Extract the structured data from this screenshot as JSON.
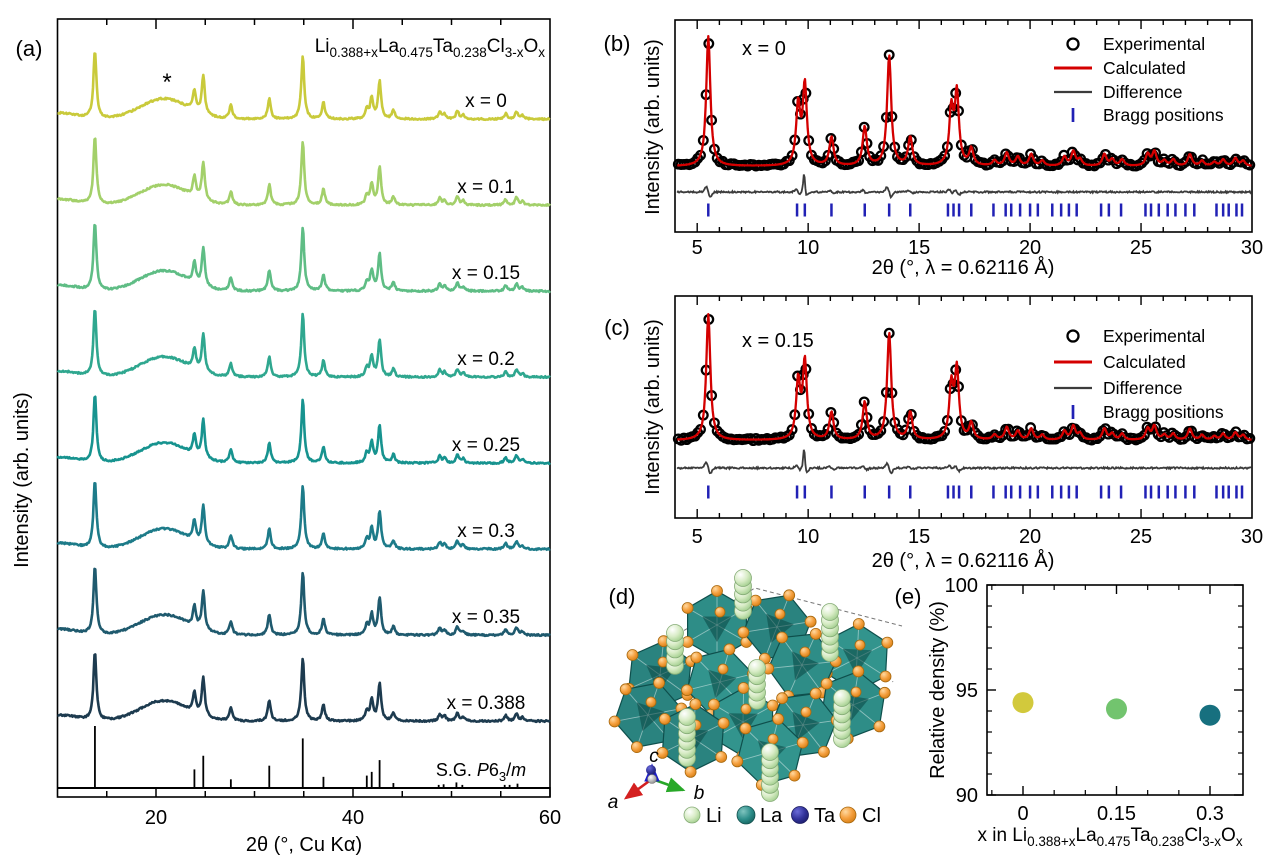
{
  "page": {
    "background": "#ffffff"
  },
  "panels": {
    "a": {
      "label": "(a)",
      "ylabel": "Intensity (arb. units)",
      "xlabel": "2θ (°, Cu Kα)",
      "asterisk": "*",
      "title_formula": [
        {
          "t": "Li"
        },
        {
          "t": "0.388+x",
          "sub": true
        },
        {
          "t": "La"
        },
        {
          "t": "0.475",
          "sub": true
        },
        {
          "t": "Ta"
        },
        {
          "t": "0.238",
          "sub": true
        },
        {
          "t": "Cl"
        },
        {
          "t": "3-x",
          "sub": true
        },
        {
          "t": "O"
        },
        {
          "t": "x",
          "sub": true
        }
      ],
      "space_group": [
        {
          "t": "S.G. "
        },
        {
          "t": "P",
          "i": true
        },
        {
          "t": "6"
        },
        {
          "t": "3",
          "sub": true
        },
        {
          "t": "/"
        },
        {
          "t": "m",
          "i": true
        }
      ]
    },
    "b": {
      "label": "(b)",
      "annotation": "x = 0",
      "ylabel": "Intensity (arb. units)",
      "xlabel": "2θ (°, λ = 0.62116 Å)"
    },
    "c": {
      "label": "(c)",
      "annotation": "x = 0.15",
      "ylabel": "Intensity (arb. units)",
      "xlabel": "2θ (°, λ = 0.62116 Å)"
    },
    "d": {
      "label": "(d)",
      "axis_labels": [
        "a",
        "b",
        "c"
      ],
      "legend": [
        {
          "label": "Li",
          "color": "#a9d694"
        },
        {
          "label": "La",
          "color": "#2d8e8a"
        },
        {
          "label": "Ta",
          "color": "#2f3094"
        },
        {
          "label": "Cl",
          "color": "#f09a3c"
        }
      ]
    },
    "e": {
      "label": "(e)",
      "ylabel": "Relative density (%)",
      "xlabel_formula": [
        {
          "t": "x in Li"
        },
        {
          "t": "0.388+x",
          "sub": true
        },
        {
          "t": "La"
        },
        {
          "t": "0.475",
          "sub": true
        },
        {
          "t": "Ta"
        },
        {
          "t": "0.238",
          "sub": true
        },
        {
          "t": "Cl"
        },
        {
          "t": "3-x",
          "sub": true
        },
        {
          "t": "O"
        },
        {
          "t": "x",
          "sub": true
        }
      ]
    }
  },
  "chart_data": [
    {
      "id": "a",
      "type": "line",
      "title": "Li0.388+x La0.475 Ta0.238 Cl3-x Ox",
      "xlabel": "2θ (°, Cu Kα)",
      "ylabel": "Intensity (arb. units)",
      "xlim": [
        10,
        60
      ],
      "xticks": [
        20,
        40,
        60
      ],
      "minor_tick_step": 5,
      "grid": false,
      "impurity_marker": {
        "symbol": "*",
        "x": 21.1
      },
      "amorphous_hump": {
        "center": 20.8,
        "sigma": 3.4,
        "height": 0.3
      },
      "series": [
        {
          "label": "x = 0",
          "color": "#c9ca3b"
        },
        {
          "label": "x = 0.1",
          "color": "#a3d06a"
        },
        {
          "label": "x = 0.15",
          "color": "#5fbd85"
        },
        {
          "label": "x = 0.2",
          "color": "#2fa78f"
        },
        {
          "label": "x = 0.25",
          "color": "#17938f"
        },
        {
          "label": "x = 0.3",
          "color": "#1d7b89"
        },
        {
          "label": "x = 0.35",
          "color": "#1f5a6e"
        },
        {
          "label": "x = 0.388",
          "color": "#1d3b4f"
        }
      ],
      "peaks": [
        [
          13.8,
          1.0
        ],
        [
          23.9,
          0.3
        ],
        [
          24.8,
          0.56
        ],
        [
          27.6,
          0.2
        ],
        [
          31.5,
          0.3
        ],
        [
          34.9,
          0.93
        ],
        [
          37.0,
          0.24
        ],
        [
          41.4,
          0.14
        ],
        [
          41.9,
          0.3
        ],
        [
          42.7,
          0.55
        ],
        [
          44.1,
          0.12
        ],
        [
          48.8,
          0.1
        ],
        [
          49.3,
          0.07
        ],
        [
          50.6,
          0.12
        ],
        [
          51.2,
          0.06
        ],
        [
          55.5,
          0.08
        ],
        [
          56.6,
          0.11
        ],
        [
          57.2,
          0.05
        ]
      ],
      "reference_sticks": {
        "label": "S.G. P63/m",
        "color": "#000000",
        "sticks": [
          [
            13.8,
            1.0
          ],
          [
            23.9,
            0.3
          ],
          [
            24.8,
            0.52
          ],
          [
            27.6,
            0.14
          ],
          [
            31.5,
            0.36
          ],
          [
            34.9,
            0.8
          ],
          [
            37.0,
            0.18
          ],
          [
            41.4,
            0.2
          ],
          [
            41.9,
            0.26
          ],
          [
            42.7,
            0.45
          ],
          [
            44.1,
            0.08
          ],
          [
            48.7,
            0.05
          ],
          [
            49.2,
            0.06
          ],
          [
            50.5,
            0.09
          ],
          [
            51.1,
            0.05
          ],
          [
            55.4,
            0.05
          ],
          [
            55.9,
            0.05
          ],
          [
            56.7,
            0.07
          ]
        ]
      }
    },
    {
      "id": "b",
      "type": "rietveld",
      "annotation": "x = 0",
      "xlabel": "2θ (°, λ = 0.62116 Å)",
      "ylabel": "Intensity (arb. units)",
      "xlim": [
        4,
        30
      ],
      "xticks": [
        5,
        10,
        15,
        20,
        25,
        30
      ],
      "minor_tick_step": 1,
      "legend": [
        {
          "label": "Experimental",
          "color": "#000000",
          "marker": "circle"
        },
        {
          "label": "Calculated",
          "color": "#d40000",
          "marker": "line"
        },
        {
          "label": "Difference",
          "color": "#3c3c3c",
          "marker": "line"
        },
        {
          "label": "Bragg positions",
          "color": "#2121b5",
          "marker": "tick"
        }
      ],
      "peaks": [
        [
          5.5,
          1.0
        ],
        [
          9.55,
          0.46
        ],
        [
          9.85,
          0.62
        ],
        [
          11.05,
          0.22
        ],
        [
          12.55,
          0.3
        ],
        [
          13.65,
          0.85
        ],
        [
          14.6,
          0.22
        ],
        [
          16.45,
          0.42
        ],
        [
          16.7,
          0.55
        ],
        [
          17.35,
          0.13
        ],
        [
          18.4,
          0.04
        ],
        [
          18.95,
          0.1
        ],
        [
          19.45,
          0.07
        ],
        [
          20.05,
          0.09
        ],
        [
          20.55,
          0.04
        ],
        [
          21.55,
          0.07
        ],
        [
          21.95,
          0.11
        ],
        [
          22.25,
          0.05
        ],
        [
          23.35,
          0.09
        ],
        [
          23.7,
          0.05
        ],
        [
          24.15,
          0.05
        ],
        [
          25.3,
          0.09
        ],
        [
          25.6,
          0.11
        ],
        [
          26.05,
          0.04
        ],
        [
          26.45,
          0.05
        ],
        [
          27.2,
          0.09
        ],
        [
          27.75,
          0.04
        ],
        [
          28.3,
          0.03
        ],
        [
          28.7,
          0.05
        ],
        [
          29.25,
          0.06
        ],
        [
          29.6,
          0.04
        ]
      ],
      "bragg_positions": [
        5.5,
        9.5,
        9.85,
        11.05,
        12.55,
        13.65,
        14.6,
        16.3,
        16.55,
        16.8,
        17.35,
        18.35,
        18.9,
        19.15,
        19.55,
        20.0,
        20.35,
        21.0,
        21.4,
        21.75,
        22.1,
        23.2,
        23.55,
        24.1,
        25.2,
        25.45,
        25.8,
        26.2,
        26.55,
        27.0,
        27.4,
        28.4,
        28.7,
        28.95,
        29.3,
        29.55
      ]
    },
    {
      "id": "c",
      "type": "rietveld",
      "annotation": "x = 0.15",
      "xlabel": "2θ (°, λ = 0.62116 Å)",
      "ylabel": "Intensity (arb. units)",
      "xlim": [
        4,
        30
      ],
      "xticks": [
        5,
        10,
        15,
        20,
        25,
        30
      ],
      "minor_tick_step": 1,
      "legend": [
        {
          "label": "Experimental",
          "color": "#000000",
          "marker": "circle"
        },
        {
          "label": "Calculated",
          "color": "#d40000",
          "marker": "line"
        },
        {
          "label": "Difference",
          "color": "#3c3c3c",
          "marker": "line"
        },
        {
          "label": "Bragg positions",
          "color": "#2121b5",
          "marker": "tick"
        }
      ],
      "peaks": [
        [
          5.5,
          1.0
        ],
        [
          9.55,
          0.46
        ],
        [
          9.85,
          0.62
        ],
        [
          11.05,
          0.22
        ],
        [
          12.55,
          0.3
        ],
        [
          13.65,
          0.85
        ],
        [
          14.6,
          0.22
        ],
        [
          16.45,
          0.42
        ],
        [
          16.7,
          0.55
        ],
        [
          17.35,
          0.13
        ],
        [
          18.4,
          0.04
        ],
        [
          18.95,
          0.1
        ],
        [
          19.45,
          0.07
        ],
        [
          20.05,
          0.09
        ],
        [
          20.55,
          0.04
        ],
        [
          21.55,
          0.07
        ],
        [
          21.95,
          0.11
        ],
        [
          22.25,
          0.05
        ],
        [
          23.35,
          0.09
        ],
        [
          23.7,
          0.05
        ],
        [
          24.15,
          0.05
        ],
        [
          25.3,
          0.09
        ],
        [
          25.6,
          0.11
        ],
        [
          26.05,
          0.04
        ],
        [
          26.45,
          0.05
        ],
        [
          27.2,
          0.09
        ],
        [
          27.75,
          0.04
        ],
        [
          28.3,
          0.03
        ],
        [
          28.7,
          0.05
        ],
        [
          29.25,
          0.06
        ],
        [
          29.6,
          0.04
        ]
      ],
      "bragg_positions": [
        5.5,
        9.5,
        9.85,
        11.05,
        12.55,
        13.65,
        14.6,
        16.3,
        16.55,
        16.8,
        17.35,
        18.35,
        18.9,
        19.15,
        19.55,
        20.0,
        20.35,
        21.0,
        21.4,
        21.75,
        22.1,
        23.2,
        23.55,
        24.1,
        25.2,
        25.45,
        25.8,
        26.2,
        26.55,
        27.0,
        27.4,
        28.4,
        28.7,
        28.95,
        29.3,
        29.55
      ]
    },
    {
      "id": "e",
      "type": "scatter",
      "x": [
        0,
        0.15,
        0.3
      ],
      "y": [
        94.4,
        94.1,
        93.8
      ],
      "point_colors": [
        "#d2c93c",
        "#72c46e",
        "#17707f"
      ],
      "xlabel": "x in Li0.388+x La0.475 Ta0.238 Cl3-x Ox",
      "ylabel": "Relative density (%)",
      "xlim": [
        -0.058,
        0.353
      ],
      "ylim": [
        90,
        100
      ],
      "yticks": [
        90,
        95,
        100
      ],
      "xticks": [
        0,
        0.15,
        0.3
      ],
      "minor_xticks": [
        -0.05,
        0.05,
        0.1,
        0.2,
        0.25
      ],
      "minor_yticks": [
        91,
        92,
        93,
        94,
        96,
        97,
        98,
        99
      ],
      "grid": false,
      "legend_position": "none"
    }
  ]
}
